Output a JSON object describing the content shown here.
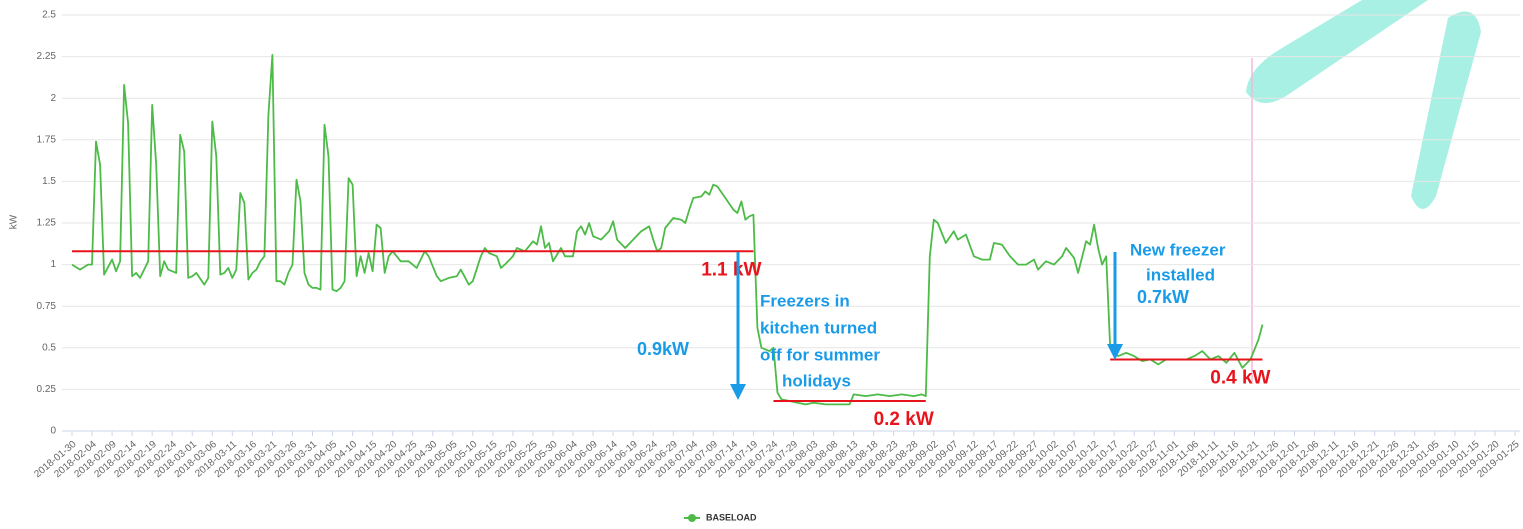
{
  "chart_data": {
    "type": "line",
    "y_label": "kW",
    "ylim": [
      0,
      2.5
    ],
    "yticks": [
      0,
      0.25,
      0.5,
      0.75,
      1,
      1.25,
      1.5,
      1.75,
      2,
      2.25,
      2.5
    ],
    "grid": true,
    "xlim": [
      "2018-01-30",
      "2019-01-25"
    ],
    "xticks": [
      "2018-01-30",
      "2018-02-04",
      "2018-02-09",
      "2018-02-14",
      "2018-02-19",
      "2018-02-24",
      "2018-03-01",
      "2018-03-06",
      "2018-03-11",
      "2018-03-16",
      "2018-03-21",
      "2018-03-26",
      "2018-03-31",
      "2018-04-05",
      "2018-04-10",
      "2018-04-15",
      "2018-04-20",
      "2018-04-25",
      "2018-04-30",
      "2018-05-05",
      "2018-05-10",
      "2018-05-15",
      "2018-05-20",
      "2018-05-25",
      "2018-05-30",
      "2018-06-04",
      "2018-06-09",
      "2018-06-14",
      "2018-06-19",
      "2018-06-24",
      "2018-06-29",
      "2018-07-04",
      "2018-07-09",
      "2018-07-14",
      "2018-07-19",
      "2018-07-24",
      "2018-07-29",
      "2018-08-03",
      "2018-08-08",
      "2018-08-13",
      "2018-08-18",
      "2018-08-23",
      "2018-08-28",
      "2018-09-02",
      "2018-09-07",
      "2018-09-12",
      "2018-09-17",
      "2018-09-22",
      "2018-09-27",
      "2018-10-02",
      "2018-10-07",
      "2018-10-12",
      "2018-10-17",
      "2018-10-22",
      "2018-10-27",
      "2018-11-01",
      "2018-11-06",
      "2018-11-11",
      "2018-11-16",
      "2018-11-21",
      "2018-11-26",
      "2018-12-01",
      "2018-12-06",
      "2018-12-11",
      "2018-12-16",
      "2018-12-21",
      "2018-12-26",
      "2018-12-31",
      "2019-01-05",
      "2019-01-10",
      "2019-01-15",
      "2019-01-20",
      "2019-01-25"
    ],
    "legend_position": "bottom",
    "series": [
      {
        "name": "BASELOAD",
        "color": "#4cbb47",
        "x": [
          "2018-01-30",
          "2018-02-01",
          "2018-02-03",
          "2018-02-04",
          "2018-02-05",
          "2018-02-06",
          "2018-02-07",
          "2018-02-09",
          "2018-02-10",
          "2018-02-11",
          "2018-02-12",
          "2018-02-13",
          "2018-02-14",
          "2018-02-15",
          "2018-02-16",
          "2018-02-18",
          "2018-02-19",
          "2018-02-20",
          "2018-02-21",
          "2018-02-22",
          "2018-02-23",
          "2018-02-25",
          "2018-02-26",
          "2018-02-27",
          "2018-02-28",
          "2018-03-01",
          "2018-03-02",
          "2018-03-04",
          "2018-03-05",
          "2018-03-06",
          "2018-03-07",
          "2018-03-08",
          "2018-03-09",
          "2018-03-10",
          "2018-03-11",
          "2018-03-12",
          "2018-03-13",
          "2018-03-14",
          "2018-03-15",
          "2018-03-16",
          "2018-03-17",
          "2018-03-18",
          "2018-03-19",
          "2018-03-20",
          "2018-03-21",
          "2018-03-22",
          "2018-03-23",
          "2018-03-24",
          "2018-03-25",
          "2018-03-26",
          "2018-03-27",
          "2018-03-28",
          "2018-03-29",
          "2018-03-30",
          "2018-03-31",
          "2018-04-01",
          "2018-04-02",
          "2018-04-03",
          "2018-04-04",
          "2018-04-05",
          "2018-04-06",
          "2018-04-07",
          "2018-04-08",
          "2018-04-09",
          "2018-04-10",
          "2018-04-11",
          "2018-04-12",
          "2018-04-13",
          "2018-04-14",
          "2018-04-15",
          "2018-04-16",
          "2018-04-17",
          "2018-04-18",
          "2018-04-19",
          "2018-04-20",
          "2018-04-22",
          "2018-04-24",
          "2018-04-26",
          "2018-04-28",
          "2018-04-29",
          "2018-05-01",
          "2018-05-02",
          "2018-05-04",
          "2018-05-06",
          "2018-05-07",
          "2018-05-09",
          "2018-05-10",
          "2018-05-12",
          "2018-05-13",
          "2018-05-14",
          "2018-05-16",
          "2018-05-17",
          "2018-05-18",
          "2018-05-20",
          "2018-05-21",
          "2018-05-23",
          "2018-05-25",
          "2018-05-26",
          "2018-05-27",
          "2018-05-28",
          "2018-05-29",
          "2018-05-30",
          "2018-06-01",
          "2018-06-02",
          "2018-06-04",
          "2018-06-05",
          "2018-06-06",
          "2018-06-07",
          "2018-06-08",
          "2018-06-09",
          "2018-06-11",
          "2018-06-13",
          "2018-06-14",
          "2018-06-15",
          "2018-06-17",
          "2018-06-19",
          "2018-06-21",
          "2018-06-23",
          "2018-06-24",
          "2018-06-25",
          "2018-06-26",
          "2018-06-27",
          "2018-06-29",
          "2018-07-01",
          "2018-07-02",
          "2018-07-03",
          "2018-07-04",
          "2018-07-06",
          "2018-07-07",
          "2018-07-08",
          "2018-07-09",
          "2018-07-10",
          "2018-07-12",
          "2018-07-14",
          "2018-07-15",
          "2018-07-16",
          "2018-07-17",
          "2018-07-18",
          "2018-07-19",
          "2018-07-20",
          "2018-07-21",
          "2018-07-23",
          "2018-07-24",
          "2018-07-25",
          "2018-07-26",
          "2018-07-28",
          "2018-07-30",
          "2018-08-01",
          "2018-08-03",
          "2018-08-06",
          "2018-08-09",
          "2018-08-12",
          "2018-08-13",
          "2018-08-16",
          "2018-08-19",
          "2018-08-22",
          "2018-08-25",
          "2018-08-28",
          "2018-08-30",
          "2018-08-31",
          "2018-09-01",
          "2018-09-02",
          "2018-09-03",
          "2018-09-05",
          "2018-09-07",
          "2018-09-08",
          "2018-09-10",
          "2018-09-12",
          "2018-09-14",
          "2018-09-16",
          "2018-09-17",
          "2018-09-19",
          "2018-09-21",
          "2018-09-23",
          "2018-09-25",
          "2018-09-27",
          "2018-09-28",
          "2018-09-30",
          "2018-10-02",
          "2018-10-04",
          "2018-10-05",
          "2018-10-07",
          "2018-10-08",
          "2018-10-10",
          "2018-10-11",
          "2018-10-12",
          "2018-10-13",
          "2018-10-14",
          "2018-10-15",
          "2018-10-16",
          "2018-10-18",
          "2018-10-20",
          "2018-10-22",
          "2018-10-24",
          "2018-10-26",
          "2018-10-28",
          "2018-10-30",
          "2018-11-01",
          "2018-11-04",
          "2018-11-06",
          "2018-11-08",
          "2018-11-10",
          "2018-11-12",
          "2018-11-14",
          "2018-11-16",
          "2018-11-18",
          "2018-11-20",
          "2018-11-22",
          "2018-11-23"
        ],
        "values": [
          1.0,
          0.97,
          1.0,
          1.0,
          1.74,
          1.6,
          0.94,
          1.03,
          0.96,
          1.02,
          2.08,
          1.85,
          0.93,
          0.95,
          0.92,
          1.02,
          1.96,
          1.6,
          0.93,
          1.02,
          0.97,
          0.95,
          1.78,
          1.68,
          0.92,
          0.93,
          0.95,
          0.88,
          0.92,
          1.86,
          1.65,
          0.94,
          0.95,
          0.98,
          0.92,
          0.97,
          1.43,
          1.37,
          0.91,
          0.95,
          0.97,
          1.02,
          1.05,
          1.9,
          2.26,
          0.9,
          0.9,
          0.88,
          0.95,
          1.0,
          1.51,
          1.38,
          0.95,
          0.88,
          0.86,
          0.86,
          0.85,
          1.84,
          1.65,
          0.85,
          0.84,
          0.86,
          0.9,
          1.52,
          1.48,
          0.93,
          1.05,
          0.95,
          1.07,
          0.96,
          1.24,
          1.22,
          0.95,
          1.05,
          1.08,
          1.02,
          1.02,
          0.98,
          1.08,
          1.05,
          0.93,
          0.9,
          0.92,
          0.93,
          0.97,
          0.88,
          0.9,
          1.05,
          1.1,
          1.07,
          1.05,
          0.98,
          1.0,
          1.05,
          1.1,
          1.08,
          1.14,
          1.12,
          1.23,
          1.1,
          1.13,
          1.02,
          1.1,
          1.05,
          1.05,
          1.2,
          1.23,
          1.18,
          1.25,
          1.17,
          1.15,
          1.2,
          1.26,
          1.15,
          1.1,
          1.15,
          1.2,
          1.23,
          1.15,
          1.08,
          1.1,
          1.22,
          1.28,
          1.27,
          1.25,
          1.33,
          1.4,
          1.41,
          1.44,
          1.42,
          1.48,
          1.47,
          1.4,
          1.33,
          1.31,
          1.38,
          1.27,
          1.29,
          1.3,
          0.62,
          0.5,
          0.48,
          0.5,
          0.23,
          0.19,
          0.18,
          0.17,
          0.16,
          0.17,
          0.16,
          0.16,
          0.16,
          0.22,
          0.21,
          0.22,
          0.21,
          0.22,
          0.21,
          0.22,
          0.21,
          1.05,
          1.27,
          1.25,
          1.13,
          1.2,
          1.15,
          1.18,
          1.05,
          1.03,
          1.03,
          1.13,
          1.12,
          1.05,
          1.0,
          1.0,
          1.03,
          0.97,
          1.02,
          1.0,
          1.05,
          1.1,
          1.04,
          0.95,
          1.14,
          1.12,
          1.24,
          1.1,
          1.0,
          1.05,
          0.5,
          0.45,
          0.47,
          0.45,
          0.42,
          0.43,
          0.4,
          0.43,
          0.43,
          0.43,
          0.45,
          0.48,
          0.43,
          0.45,
          0.41,
          0.47,
          0.38,
          0.43,
          0.55,
          0.64
        ]
      }
    ],
    "reference_lines": [
      {
        "value": 1.08,
        "label": "1.1 kW",
        "from": "2018-01-30",
        "to": "2018-07-19",
        "color": "#e8141b"
      },
      {
        "value": 0.18,
        "label": "0.2 kW",
        "from": "2018-07-24",
        "to": "2018-08-31",
        "color": "#e8141b"
      },
      {
        "value": 0.43,
        "label": "0.4 kW",
        "from": "2018-10-16",
        "to": "2018-11-23",
        "color": "#e8141b"
      }
    ],
    "annotations": [
      {
        "text": "0.9kW"
      },
      {
        "lines": [
          "Freezers in",
          "kitchen turned",
          "off for summer",
          "holidays"
        ]
      },
      {
        "lines": [
          "New freezer",
          "installed"
        ]
      },
      {
        "text": "0.7kW"
      }
    ]
  }
}
